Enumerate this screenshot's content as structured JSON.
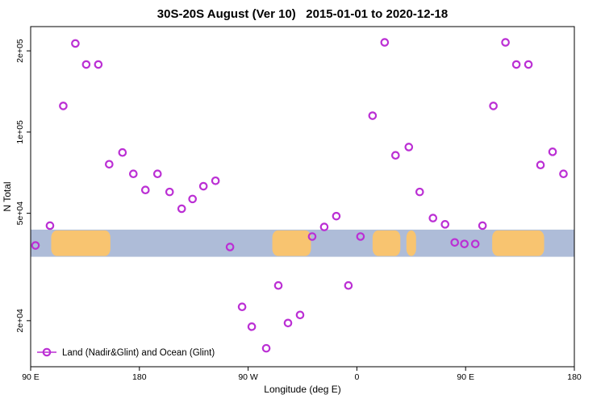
{
  "chart_data": {
    "type": "scatter",
    "title": "30S-20S August (Ver 10)   2015-01-01 to 2020-12-18",
    "xlabel": "Longitude (deg E)",
    "ylabel": "N Total",
    "legend_label": "Land (Nadir&Glint) and Ocean (Glint)",
    "y_scale": "log",
    "grid": false,
    "legend_position": "bottom-left",
    "xlim": [
      90,
      540
    ],
    "ylim": [
      13500,
      246000
    ],
    "x_ticks": [
      {
        "value": 90,
        "label": "90 E"
      },
      {
        "value": 180,
        "label": "180"
      },
      {
        "value": 270,
        "label": "90 W"
      },
      {
        "value": 360,
        "label": "0"
      },
      {
        "value": 450,
        "label": "90 E"
      },
      {
        "value": 540,
        "label": "180"
      }
    ],
    "y_ticks": [
      {
        "value": 20000,
        "label": "2e+04"
      },
      {
        "value": 50000,
        "label": "5e+04"
      },
      {
        "value": 100000,
        "label": "1e+05"
      },
      {
        "value": 200000,
        "label": "2e+05"
      }
    ],
    "marker_color": "#bb2fd4",
    "map_strip": {
      "ocean_color": "#aebcd8",
      "land_color": "#f8c470",
      "value_top": 43500,
      "value_bottom": 34500,
      "land_segments_lon": [
        [
          107,
          156
        ],
        [
          290,
          322
        ],
        [
          373,
          396
        ],
        [
          401,
          409
        ],
        [
          472,
          515
        ]
      ]
    },
    "points": [
      {
        "lon": 94,
        "n": 38000
      },
      {
        "lon": 106,
        "n": 45000
      },
      {
        "lon": 117,
        "n": 125000
      },
      {
        "lon": 127,
        "n": 213000
      },
      {
        "lon": 136,
        "n": 178000
      },
      {
        "lon": 146,
        "n": 178000
      },
      {
        "lon": 155,
        "n": 76000
      },
      {
        "lon": 166,
        "n": 84000
      },
      {
        "lon": 175,
        "n": 70000
      },
      {
        "lon": 185,
        "n": 61000
      },
      {
        "lon": 195,
        "n": 70000
      },
      {
        "lon": 205,
        "n": 60000
      },
      {
        "lon": 215,
        "n": 52000
      },
      {
        "lon": 224,
        "n": 56500
      },
      {
        "lon": 233,
        "n": 63000
      },
      {
        "lon": 243,
        "n": 66000
      },
      {
        "lon": 255,
        "n": 37500
      },
      {
        "lon": 265,
        "n": 22500
      },
      {
        "lon": 273,
        "n": 19000
      },
      {
        "lon": 285,
        "n": 15800
      },
      {
        "lon": 295,
        "n": 27000
      },
      {
        "lon": 303,
        "n": 19600
      },
      {
        "lon": 313,
        "n": 21000
      },
      {
        "lon": 323,
        "n": 41000
      },
      {
        "lon": 333,
        "n": 44500
      },
      {
        "lon": 343,
        "n": 48800
      },
      {
        "lon": 353,
        "n": 27000
      },
      {
        "lon": 363,
        "n": 41000
      },
      {
        "lon": 373,
        "n": 115000
      },
      {
        "lon": 383,
        "n": 215000
      },
      {
        "lon": 392,
        "n": 82000
      },
      {
        "lon": 403,
        "n": 88000
      },
      {
        "lon": 412,
        "n": 60000
      },
      {
        "lon": 423,
        "n": 48000
      },
      {
        "lon": 433,
        "n": 45500
      },
      {
        "lon": 441,
        "n": 39000
      },
      {
        "lon": 449,
        "n": 38500
      },
      {
        "lon": 458,
        "n": 38500
      },
      {
        "lon": 464,
        "n": 45000
      },
      {
        "lon": 473,
        "n": 125000
      },
      {
        "lon": 483,
        "n": 215000
      },
      {
        "lon": 492,
        "n": 178000
      },
      {
        "lon": 502,
        "n": 178000
      },
      {
        "lon": 512,
        "n": 75500
      },
      {
        "lon": 522,
        "n": 84500
      },
      {
        "lon": 531,
        "n": 70000
      }
    ]
  }
}
